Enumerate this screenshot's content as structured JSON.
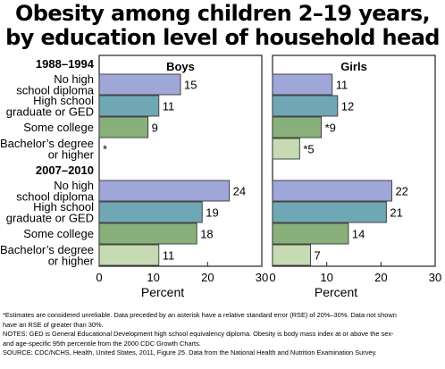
{
  "title_lines": [
    "Obesity among children 2–19 years,",
    "by education level of household head"
  ],
  "chart_data": {
    "type": "bar",
    "orientation": "horizontal",
    "xlabel": "Percent",
    "xlim": [
      0,
      30
    ],
    "xticks": [
      0,
      10,
      20,
      30
    ],
    "panels": [
      "Boys",
      "Girls"
    ],
    "groups": [
      {
        "period": "1988–1994",
        "categories": [
          [
            "No high",
            "school diploma"
          ],
          [
            "High school",
            "graduate or GED"
          ],
          [
            "Some college"
          ],
          [
            "Bachelor’s degree",
            "or higher"
          ]
        ],
        "boys": [
          15,
          11,
          9,
          null
        ],
        "boys_labels": [
          "15",
          "11",
          "9",
          "*"
        ],
        "girls": [
          11,
          12,
          9,
          5
        ],
        "girls_labels": [
          "11",
          "12",
          "*9",
          "*5"
        ]
      },
      {
        "period": "2007–2010",
        "categories": [
          [
            "No high",
            "school diploma"
          ],
          [
            "High school",
            "graduate or GED"
          ],
          [
            "Some college"
          ],
          [
            "Bachelor’s degree",
            "or higher"
          ]
        ],
        "boys": [
          24,
          19,
          18,
          11
        ],
        "boys_labels": [
          "24",
          "19",
          "18",
          "11"
        ],
        "girls": [
          22,
          21,
          14,
          7
        ],
        "girls_labels": [
          "22",
          "21",
          "14",
          "7"
        ]
      }
    ],
    "colors": {
      "no_high_school": "#9fa6d8",
      "high_school": "#6fa7b5",
      "some_college": "#89b07b",
      "bachelors": "#c6dbb4",
      "border": "#444444"
    }
  },
  "notes": [
    "*Estimates are considered unreliable. Data preceded by an asterisk have a relative standard error (RSE) of 20%–30%. Data not shown",
    "have an RSE of greater than 30%.",
    "NOTES: GED is General Educational Development high school equivalency diploma. Obesity is body mass index at or above the sex-",
    "and age-specific 95th percentile from the 2000 CDC Growth Charts.",
    "SOURCE: CDC/NCHS, Health, United States, 2011, Figure 25. Data from the National Health and Nutrition Examination Survey."
  ]
}
